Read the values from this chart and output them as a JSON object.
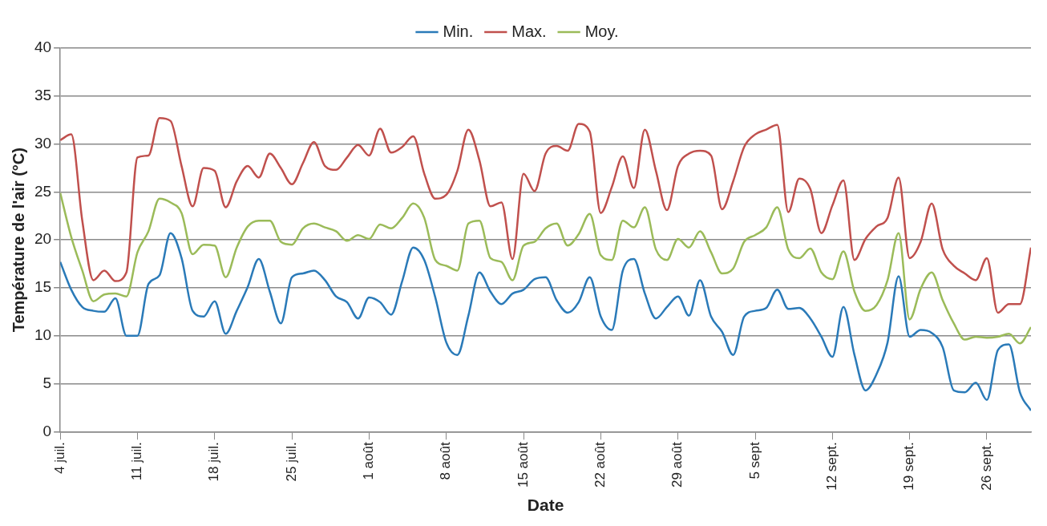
{
  "chart_data": {
    "type": "line",
    "xlabel": "Date",
    "ylabel": "Température de l'air (°C)",
    "x": [
      "--07-04",
      "--07-05",
      "--07-06",
      "--07-07",
      "--07-08",
      "--07-09",
      "--07-10",
      "--07-11",
      "--07-12",
      "--07-13",
      "--07-14",
      "--07-15",
      "--07-16",
      "--07-17",
      "--07-18",
      "--07-19",
      "--07-20",
      "--07-21",
      "--07-22",
      "--07-23",
      "--07-24",
      "--07-25",
      "--07-26",
      "--07-27",
      "--07-28",
      "--07-29",
      "--07-30",
      "--07-31",
      "--08-01",
      "--08-02",
      "--08-03",
      "--08-04",
      "--08-05",
      "--08-06",
      "--08-07",
      "--08-08",
      "--08-09",
      "--08-10",
      "--08-11",
      "--08-12",
      "--08-13",
      "--08-14",
      "--08-15",
      "--08-16",
      "--08-17",
      "--08-18",
      "--08-19",
      "--08-20",
      "--08-21",
      "--08-22",
      "--08-23",
      "--08-24",
      "--08-25",
      "--08-26",
      "--08-27",
      "--08-28",
      "--08-29",
      "--08-30",
      "--08-31",
      "--09-01",
      "--09-02",
      "--09-03",
      "--09-04",
      "--09-05",
      "--09-06",
      "--09-07",
      "--09-08",
      "--09-09",
      "--09-10",
      "--09-11",
      "--09-12",
      "--09-13",
      "--09-14",
      "--09-15",
      "--09-16",
      "--09-17",
      "--09-18",
      "--09-19",
      "--09-20",
      "--09-21",
      "--09-22",
      "--09-23",
      "--09-24",
      "--09-25",
      "--09-26",
      "--09-27",
      "--09-28",
      "--09-29",
      "--09-30"
    ],
    "series": [
      {
        "name": "Min.",
        "color": "#2a7ab8",
        "values": [
          17.7,
          14.8,
          13.0,
          12.6,
          12.5,
          13.9,
          10.0,
          10.0,
          15.4,
          16.3,
          20.7,
          18.1,
          12.6,
          12.0,
          13.6,
          10.2,
          12.6,
          15.1,
          18.0,
          14.6,
          11.3,
          16.1,
          16.5,
          16.8,
          15.8,
          14.1,
          13.5,
          11.8,
          14.0,
          13.5,
          12.2,
          15.7,
          19.2,
          17.9,
          14.0,
          9.3,
          8.0,
          12.1,
          16.6,
          14.6,
          13.3,
          14.4,
          14.8,
          15.9,
          16.1,
          13.7,
          12.4,
          13.5,
          16.1,
          12.0,
          10.6,
          16.8,
          18.0,
          14.4,
          11.8,
          13.0,
          14.1,
          12.1,
          15.8,
          12.0,
          10.4,
          8.0,
          12.0,
          12.6,
          12.9,
          14.8,
          12.8,
          12.9,
          11.8,
          9.9,
          7.8,
          13.0,
          8.0,
          4.3,
          6.0,
          9.3,
          16.2,
          9.9,
          10.6,
          10.3,
          8.8,
          4.3,
          4.1,
          5.1,
          3.3,
          8.5,
          9.1,
          4.1,
          2.2
        ]
      },
      {
        "name": "Max.",
        "color": "#c0504d",
        "values": [
          30.4,
          31.0,
          22.0,
          15.8,
          16.8,
          15.7,
          16.6,
          28.6,
          28.8,
          32.7,
          32.4,
          27.7,
          23.5,
          27.5,
          27.2,
          23.4,
          26.1,
          27.7,
          26.5,
          29.0,
          27.5,
          25.8,
          28.0,
          30.2,
          27.7,
          27.3,
          28.6,
          29.9,
          28.8,
          31.6,
          29.1,
          29.7,
          30.8,
          26.9,
          24.3,
          24.7,
          27.2,
          31.5,
          28.3,
          23.5,
          23.9,
          18.0,
          26.9,
          25.1,
          29.0,
          29.8,
          29.3,
          32.1,
          31.3,
          22.8,
          25.5,
          28.7,
          25.4,
          31.5,
          27.2,
          23.1,
          27.7,
          29.0,
          29.3,
          28.8,
          23.2,
          26.1,
          29.7,
          31.0,
          31.5,
          32.0,
          22.9,
          26.4,
          25.3,
          20.7,
          23.6,
          26.2,
          17.9,
          20.1,
          21.4,
          22.3,
          26.5,
          18.1,
          19.8,
          23.8,
          19.0,
          17.3,
          16.5,
          15.8,
          18.1,
          12.4,
          13.3,
          13.3,
          19.2
        ]
      },
      {
        "name": "Moy.",
        "color": "#9bbb59",
        "values": [
          24.9,
          20.3,
          16.8,
          13.6,
          14.3,
          14.4,
          14.1,
          18.7,
          20.9,
          24.3,
          23.9,
          22.8,
          18.5,
          19.5,
          19.4,
          16.1,
          19.2,
          21.4,
          22.0,
          22.0,
          19.8,
          19.5,
          21.2,
          21.7,
          21.3,
          20.9,
          19.9,
          20.5,
          20.1,
          21.6,
          21.2,
          22.3,
          23.8,
          22.3,
          17.9,
          17.3,
          16.8,
          21.7,
          22.0,
          18.1,
          17.7,
          15.8,
          19.4,
          19.8,
          21.2,
          21.7,
          19.4,
          20.6,
          22.7,
          18.4,
          17.9,
          22.0,
          21.3,
          23.4,
          19.0,
          17.9,
          20.1,
          19.2,
          20.9,
          18.7,
          16.5,
          17.0,
          19.8,
          20.5,
          21.3,
          23.4,
          19.0,
          18.1,
          19.1,
          16.6,
          15.9,
          18.8,
          14.6,
          12.6,
          13.2,
          15.8,
          20.7,
          11.7,
          14.9,
          16.6,
          13.7,
          11.3,
          9.6,
          9.9,
          9.8,
          9.9,
          10.2,
          9.2,
          10.9
        ]
      }
    ],
    "xlim": [
      "--07-04",
      "--09-30"
    ],
    "xticks": [
      {
        "value": "--07-04",
        "label": "4 juil."
      },
      {
        "value": "--07-11",
        "label": "11 juil."
      },
      {
        "value": "--07-18",
        "label": "18 juil."
      },
      {
        "value": "--07-25",
        "label": "25 juil."
      },
      {
        "value": "--08-01",
        "label": "1 août"
      },
      {
        "value": "--08-08",
        "label": "8 août"
      },
      {
        "value": "--08-15",
        "label": "15 août"
      },
      {
        "value": "--08-22",
        "label": "22 août"
      },
      {
        "value": "--08-29",
        "label": "29 août"
      },
      {
        "value": "--09-05",
        "label": "5 sept"
      },
      {
        "value": "--09-12",
        "label": "12 sept."
      },
      {
        "value": "--09-19",
        "label": "19 sept."
      },
      {
        "value": "--09-26",
        "label": "26 sept."
      }
    ],
    "ylim": [
      0,
      40
    ],
    "yticks": [
      0,
      5,
      10,
      15,
      20,
      25,
      30,
      35,
      40
    ],
    "grid": "y",
    "legend": "top",
    "marker": "none",
    "line_style": "solid"
  }
}
